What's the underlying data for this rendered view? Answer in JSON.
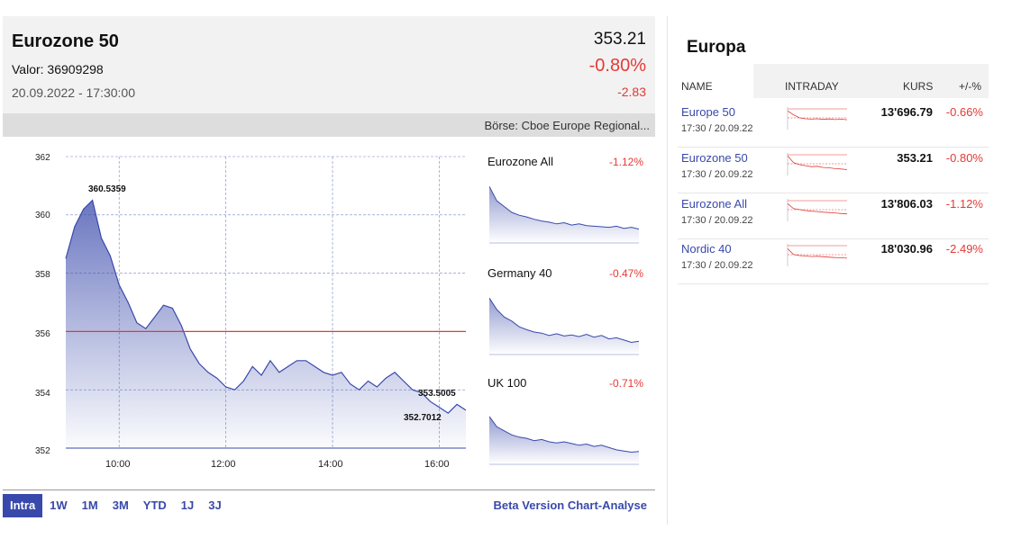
{
  "header": {
    "title": "Eurozone 50",
    "valor": "Valor: 36909298",
    "datetime": "20.09.2022 - 17:30:00",
    "price": "353.21",
    "change_pct": "-0.80%",
    "change_abs": "-2.83",
    "exchange": "Börse: Cboe Europe Regional..."
  },
  "main_chart": {
    "y_ticks": [
      "362",
      "360",
      "358",
      "356",
      "354",
      "352"
    ],
    "x_ticks": [
      "10:00",
      "12:00",
      "14:00",
      "16:00"
    ],
    "high_label": "360.5359",
    "close_label": "353.5005",
    "low_label": "352.7012",
    "reference_value": 356.0
  },
  "mini_charts": [
    {
      "name": "Eurozone All",
      "pct": "-1.12%"
    },
    {
      "name": "Germany 40",
      "pct": "-0.47%"
    },
    {
      "name": "UK 100",
      "pct": "-0.71%"
    }
  ],
  "tabs": [
    "Intra",
    "1W",
    "1M",
    "3M",
    "YTD",
    "1J",
    "3J"
  ],
  "active_tab": "Intra",
  "beta_link": "Beta Version Chart-Analyse",
  "right": {
    "title": "Europa",
    "headers": {
      "name": "NAME",
      "intraday": "INTRADAY",
      "kurs": "KURS",
      "pct": "+/-%"
    },
    "rows": [
      {
        "name": "Europe 50",
        "time": "17:30 / 20.09.22",
        "kurs": "13'696.79",
        "pct": "-0.66%"
      },
      {
        "name": "Eurozone 50",
        "time": "17:30 / 20.09.22",
        "kurs": "353.21",
        "pct": "-0.80%"
      },
      {
        "name": "Eurozone All",
        "time": "17:30 / 20.09.22",
        "kurs": "13'806.03",
        "pct": "-1.12%"
      },
      {
        "name": "Nordic 40",
        "time": "17:30 / 20.09.22",
        "kurs": "18'030.96",
        "pct": "-2.49%"
      }
    ]
  },
  "colors": {
    "accent": "#3949ab",
    "negative": "#e53935",
    "header_bg": "#f2f2f2"
  },
  "chart_data": {
    "type": "area",
    "title": "",
    "xlabel": "",
    "ylabel": "",
    "ylim": [
      352,
      362
    ],
    "x_ticks": [
      "10:00",
      "12:00",
      "14:00",
      "16:00"
    ],
    "x": [
      "09:00",
      "09:10",
      "09:20",
      "09:30",
      "09:40",
      "09:50",
      "10:00",
      "10:10",
      "10:20",
      "10:30",
      "10:40",
      "10:50",
      "11:00",
      "11:10",
      "11:20",
      "11:30",
      "11:40",
      "11:50",
      "12:00",
      "12:10",
      "12:20",
      "12:30",
      "12:40",
      "12:50",
      "13:00",
      "13:10",
      "13:20",
      "13:30",
      "13:40",
      "13:50",
      "14:00",
      "14:10",
      "14:20",
      "14:30",
      "14:40",
      "14:50",
      "15:00",
      "15:10",
      "15:20",
      "15:30",
      "15:40",
      "15:50",
      "16:00",
      "16:10",
      "16:20",
      "16:30"
    ],
    "values": [
      358.5,
      359.6,
      360.2,
      360.5,
      359.2,
      358.6,
      357.6,
      357.0,
      356.3,
      356.1,
      356.5,
      356.9,
      356.8,
      356.2,
      355.4,
      354.9,
      354.6,
      354.4,
      354.1,
      354.0,
      354.3,
      354.8,
      354.5,
      355.0,
      354.6,
      354.8,
      355.0,
      355.0,
      354.8,
      354.6,
      354.5,
      354.6,
      354.2,
      354.0,
      354.3,
      354.1,
      354.4,
      354.6,
      354.3,
      354.0,
      353.9,
      353.6,
      353.4,
      353.2,
      353.5,
      353.3
    ],
    "reference_line": 356.0,
    "annotations": [
      "360.5359",
      "353.5005",
      "352.7012"
    ],
    "grid": true
  }
}
